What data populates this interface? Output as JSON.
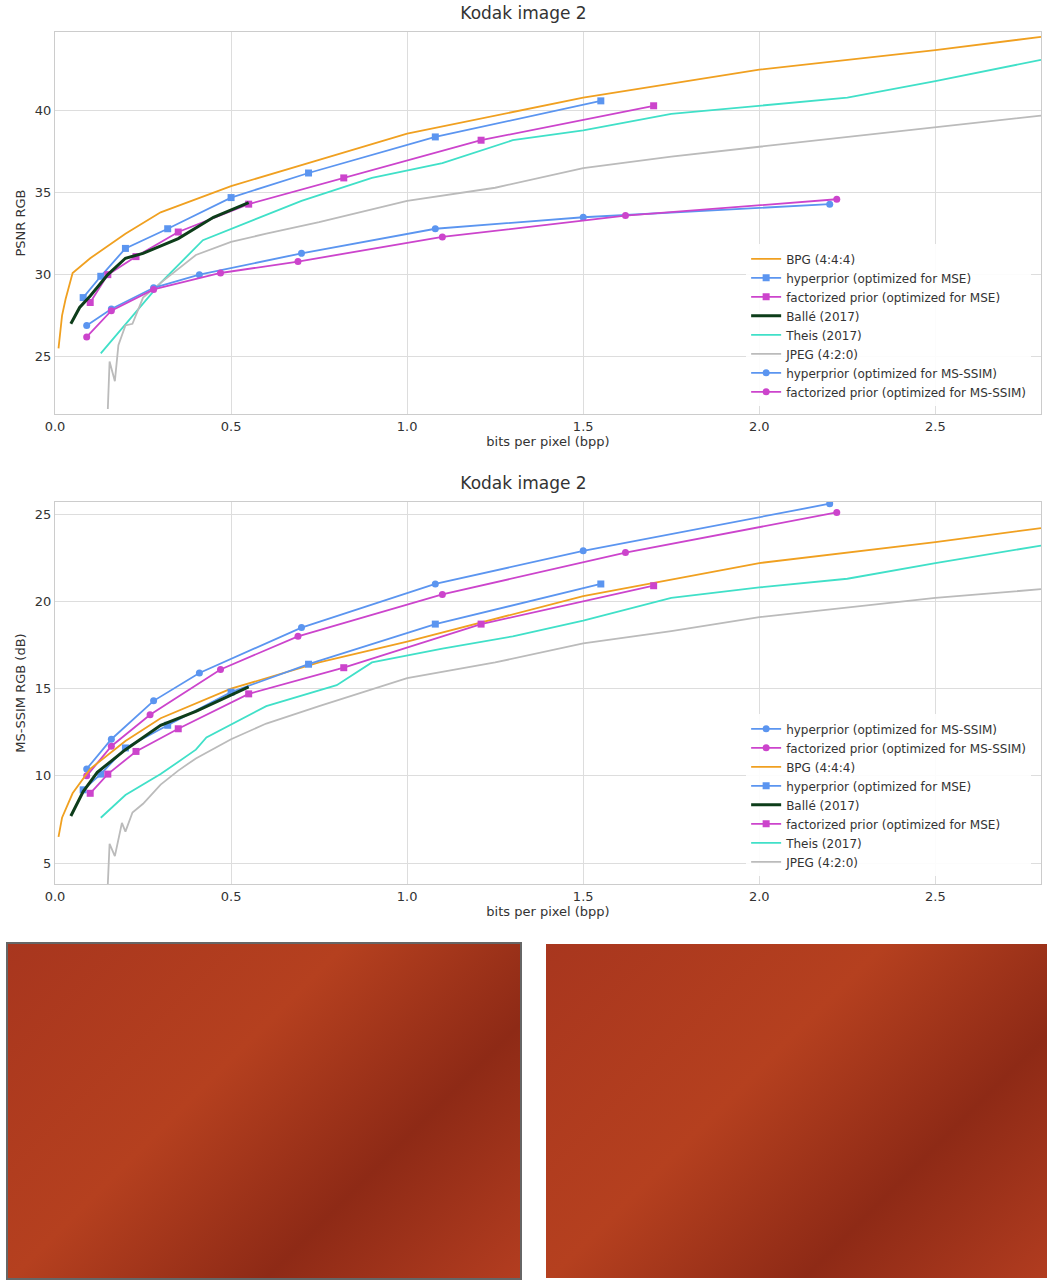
{
  "chart_data": [
    {
      "type": "line",
      "title": "Kodak image 2",
      "x_label": "bits per pixel (bpp)",
      "y_label": "PSNR RGB",
      "xlim": [
        0,
        2.8
      ],
      "ylim": [
        21.5,
        44.8
      ],
      "xticks": [
        {
          "value": 0,
          "label": "0.0"
        },
        0.5,
        {
          "value": 1,
          "label": "1.0"
        },
        1.5,
        {
          "value": 2,
          "label": "2.0"
        },
        2.5
      ],
      "yticks": [
        25,
        30,
        35,
        40
      ],
      "grid": true,
      "legend": "bottom right",
      "series": [
        {
          "name": "BPG (4:4:4)",
          "color": "#f0a020",
          "marker": "none",
          "line_style": "solid",
          "x": [
            0.01,
            0.02,
            0.03,
            0.05,
            0.1,
            0.2,
            0.3,
            0.5,
            0.75,
            1.0,
            1.5,
            2.0,
            2.5,
            2.8
          ],
          "values": [
            25.5,
            27.5,
            28.5,
            30.1,
            31.0,
            32.5,
            33.8,
            35.4,
            37.0,
            38.6,
            40.8,
            42.5,
            43.7,
            44.5
          ]
        },
        {
          "name": "hyperprior (optimized for MSE)",
          "color": "#5b95f0",
          "marker": "square",
          "line_style": "solid",
          "x": [
            0.08,
            0.13,
            0.2,
            0.32,
            0.5,
            0.72,
            1.08,
            1.55
          ],
          "values": [
            28.6,
            29.9,
            31.6,
            32.8,
            34.7,
            36.2,
            38.4,
            40.6
          ]
        },
        {
          "name": "factorized prior (optimized for MSE)",
          "color": "#cc44cc",
          "marker": "square",
          "line_style": "solid",
          "x": [
            0.1,
            0.15,
            0.23,
            0.35,
            0.55,
            0.82,
            1.21,
            1.7
          ],
          "values": [
            28.3,
            30.0,
            31.1,
            32.6,
            34.3,
            35.9,
            38.2,
            40.3
          ]
        },
        {
          "name": "Ballé (2017)",
          "color": "#0d3d1a",
          "marker": "none",
          "line_style": "solid",
          "x": [
            0.045,
            0.07,
            0.1,
            0.15,
            0.2,
            0.25,
            0.35,
            0.45,
            0.55
          ],
          "values": [
            27.0,
            28.0,
            28.7,
            30.0,
            31.0,
            31.3,
            32.2,
            33.5,
            34.4
          ]
        },
        {
          "name": "Theis (2017)",
          "color": "#40e0c8",
          "marker": "none",
          "line_style": "solid",
          "x": [
            0.13,
            0.2,
            0.3,
            0.42,
            0.5,
            0.7,
            0.9,
            1.1,
            1.3,
            1.5,
            1.75,
            2.0,
            2.25,
            2.5,
            2.8
          ],
          "values": [
            25.2,
            27.0,
            29.5,
            32.1,
            32.8,
            34.5,
            35.9,
            36.8,
            38.2,
            38.8,
            39.8,
            40.3,
            40.8,
            41.8,
            43.1
          ]
        },
        {
          "name": "JPEG (4:2:0)",
          "color": "#bbbbbb",
          "marker": "none",
          "line_style": "solid",
          "x": [
            0.15,
            0.155,
            0.17,
            0.18,
            0.2,
            0.22,
            0.25,
            0.3,
            0.4,
            0.5,
            0.6,
            0.75,
            1.0,
            1.25,
            1.5,
            1.75,
            2.0,
            2.25,
            2.5,
            2.8
          ],
          "values": [
            21.8,
            24.7,
            23.5,
            25.7,
            26.9,
            27.0,
            28.6,
            29.5,
            31.2,
            32.0,
            32.5,
            33.2,
            34.5,
            35.3,
            36.5,
            37.2,
            37.8,
            38.4,
            39.0,
            39.7
          ]
        },
        {
          "name": "hyperprior (optimized for MS-SSIM)",
          "color": "#5b95f0",
          "marker": "circle",
          "line_style": "solid",
          "x": [
            0.09,
            0.16,
            0.28,
            0.41,
            0.7,
            1.08,
            1.5,
            2.2
          ],
          "values": [
            26.9,
            27.9,
            29.2,
            30.0,
            31.3,
            32.8,
            33.5,
            34.3
          ]
        },
        {
          "name": "factorized prior (optimized for MS-SSIM)",
          "color": "#cc44cc",
          "marker": "circle",
          "line_style": "solid",
          "x": [
            0.09,
            0.16,
            0.28,
            0.47,
            0.69,
            1.1,
            1.62,
            2.22
          ],
          "values": [
            26.2,
            27.8,
            29.1,
            30.1,
            30.8,
            32.3,
            33.6,
            34.6
          ]
        }
      ]
    },
    {
      "type": "line",
      "title": "Kodak image 2",
      "x_label": "bits per pixel (bpp)",
      "y_label": "MS-SSIM RGB (dB)",
      "xlim": [
        0,
        2.8
      ],
      "ylim": [
        3.8,
        25.7
      ],
      "xticks": [
        {
          "value": 0,
          "label": "0.0"
        },
        0.5,
        {
          "value": 1,
          "label": "1.0"
        },
        1.5,
        {
          "value": 2,
          "label": "2.0"
        },
        2.5
      ],
      "yticks": [
        5,
        10,
        15,
        20,
        25
      ],
      "grid": true,
      "legend": "bottom right",
      "series": [
        {
          "name": "hyperprior (optimized for MS-SSIM)",
          "color": "#5b95f0",
          "marker": "circle",
          "line_style": "solid",
          "x": [
            0.09,
            0.16,
            0.28,
            0.41,
            0.7,
            1.08,
            1.5,
            2.2
          ],
          "values": [
            10.4,
            12.1,
            14.3,
            15.9,
            18.5,
            21.0,
            22.9,
            25.6
          ]
        },
        {
          "name": "factorized prior (optimized for MS-SSIM)",
          "color": "#cc44cc",
          "marker": "circle",
          "line_style": "solid",
          "x": [
            0.09,
            0.16,
            0.27,
            0.47,
            0.69,
            1.1,
            1.62,
            2.22
          ],
          "values": [
            10.0,
            11.7,
            13.5,
            16.1,
            18.0,
            20.4,
            22.8,
            25.1
          ]
        },
        {
          "name": "BPG (4:4:4)",
          "color": "#f0a020",
          "marker": "none",
          "line_style": "solid",
          "x": [
            0.01,
            0.02,
            0.05,
            0.1,
            0.2,
            0.3,
            0.5,
            0.75,
            1.0,
            1.5,
            2.0,
            2.5,
            2.8
          ],
          "values": [
            6.5,
            7.6,
            9.0,
            10.4,
            12.0,
            13.3,
            15.0,
            16.5,
            17.7,
            20.3,
            22.2,
            23.4,
            24.2
          ]
        },
        {
          "name": "hyperprior (optimized for MSE)",
          "color": "#5b95f0",
          "marker": "square",
          "line_style": "solid",
          "x": [
            0.08,
            0.13,
            0.2,
            0.32,
            0.5,
            0.72,
            1.08,
            1.55
          ],
          "values": [
            9.2,
            10.1,
            11.6,
            12.9,
            14.8,
            16.4,
            18.7,
            21.0
          ]
        },
        {
          "name": "Ballé (2017)",
          "color": "#0d3d1a",
          "marker": "none",
          "line_style": "solid",
          "x": [
            0.045,
            0.08,
            0.12,
            0.2,
            0.3,
            0.4,
            0.55
          ],
          "values": [
            7.7,
            9.1,
            10.2,
            11.5,
            12.9,
            13.7,
            15.1
          ]
        },
        {
          "name": "factorized prior (optimized for MSE)",
          "color": "#cc44cc",
          "marker": "square",
          "line_style": "solid",
          "x": [
            0.1,
            0.15,
            0.23,
            0.35,
            0.55,
            0.82,
            1.21,
            1.7
          ],
          "values": [
            9.0,
            10.1,
            11.4,
            12.7,
            14.7,
            16.2,
            18.7,
            20.9
          ]
        },
        {
          "name": "Theis (2017)",
          "color": "#40e0c8",
          "marker": "none",
          "line_style": "solid",
          "x": [
            0.13,
            0.2,
            0.3,
            0.4,
            0.43,
            0.6,
            0.8,
            0.9,
            1.1,
            1.3,
            1.5,
            1.75,
            2.0,
            2.25,
            2.5,
            2.8
          ],
          "values": [
            7.6,
            8.9,
            10.1,
            11.5,
            12.2,
            14.0,
            15.2,
            16.5,
            17.3,
            18.0,
            18.9,
            20.2,
            20.8,
            21.3,
            22.2,
            23.2
          ]
        },
        {
          "name": "JPEG (4:2:0)",
          "color": "#bbbbbb",
          "marker": "none",
          "line_style": "solid",
          "x": [
            0.15,
            0.155,
            0.17,
            0.19,
            0.2,
            0.22,
            0.25,
            0.3,
            0.35,
            0.4,
            0.5,
            0.6,
            0.75,
            1.0,
            1.25,
            1.5,
            1.75,
            2.0,
            2.5,
            2.8
          ],
          "values": [
            3.8,
            6.1,
            5.4,
            7.3,
            6.8,
            7.9,
            8.4,
            9.5,
            10.3,
            11.0,
            12.1,
            13.0,
            14.0,
            15.6,
            16.5,
            17.6,
            18.3,
            19.1,
            20.2,
            20.7
          ]
        }
      ]
    }
  ]
}
